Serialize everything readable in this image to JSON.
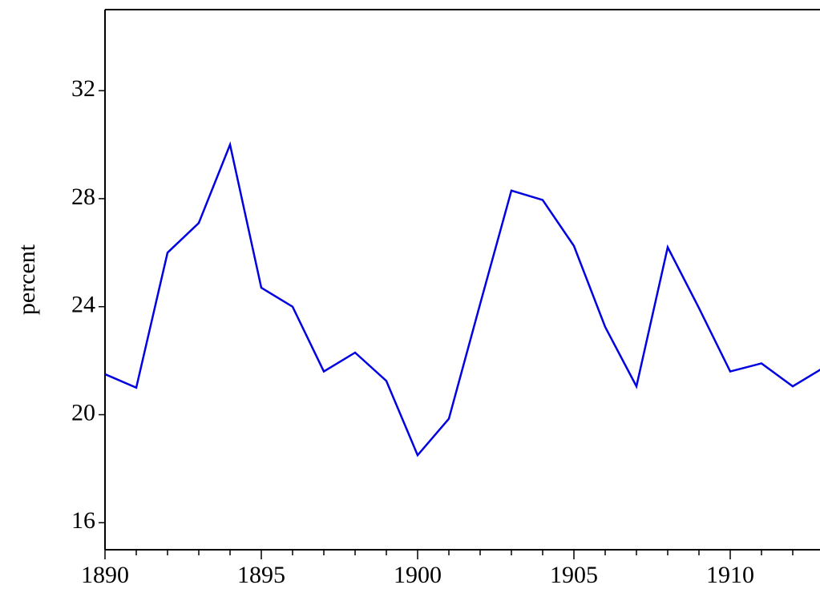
{
  "chart_data": {
    "type": "line",
    "y_label": "percent",
    "x": [
      1890,
      1891,
      1892,
      1893,
      1894,
      1895,
      1896,
      1897,
      1898,
      1899,
      1900,
      1901,
      1902,
      1903,
      1904,
      1905,
      1906,
      1907,
      1908,
      1909,
      1910,
      1911,
      1912,
      1913
    ],
    "series": [
      {
        "color": "#0000e0",
        "values": [
          21.5,
          21.0,
          26.0,
          27.1,
          30.0,
          24.7,
          24.0,
          21.6,
          22.3,
          21.25,
          18.5,
          19.85,
          24.1,
          28.3,
          27.95,
          26.25,
          23.25,
          21.05,
          26.2,
          23.95,
          21.6,
          21.9,
          21.05,
          21.75
        ]
      }
    ],
    "xlim": [
      1890,
      1913
    ],
    "xticks": [
      1890,
      1895,
      1900,
      1905,
      1910
    ],
    "xticks_minor": [
      1891,
      1892,
      1893,
      1894,
      1896,
      1897,
      1898,
      1899,
      1901,
      1902,
      1903,
      1904,
      1906,
      1907,
      1908,
      1909,
      1911,
      1912,
      1913
    ],
    "ylim": [
      15,
      35
    ],
    "yticks": [
      16,
      20,
      24,
      28,
      32
    ]
  }
}
